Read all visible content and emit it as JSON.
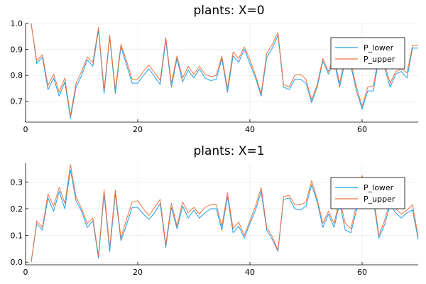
{
  "colors": {
    "lower": "#1f9ee9",
    "upper": "#f0743e",
    "grid": "#e6e6e6",
    "legend_border": "#000000"
  },
  "chart_data": [
    {
      "type": "line",
      "title": "plants: X=0",
      "xlabel": "",
      "ylabel": "",
      "xlim": [
        0,
        70
      ],
      "ylim": [
        0.62,
        1.0
      ],
      "xticks": [
        0,
        20,
        40,
        60
      ],
      "yticks": [
        0.7,
        0.8,
        0.9,
        1.0
      ],
      "ytick_labels": [
        "0.7",
        "0.8",
        "0.9",
        "1.0"
      ],
      "grid": true,
      "legend_position": "top-right",
      "x": [
        1,
        2,
        3,
        4,
        5,
        6,
        7,
        8,
        9,
        10,
        11,
        12,
        13,
        14,
        15,
        16,
        17,
        18,
        19,
        20,
        21,
        22,
        23,
        24,
        25,
        26,
        27,
        28,
        29,
        30,
        31,
        32,
        33,
        34,
        35,
        36,
        37,
        38,
        39,
        40,
        41,
        42,
        43,
        44,
        45,
        46,
        47,
        48,
        49,
        50,
        51,
        52,
        53,
        54,
        55,
        56,
        57,
        58,
        59,
        60,
        61,
        62,
        63,
        64,
        65,
        66,
        67,
        68,
        69,
        70
      ],
      "series": [
        {
          "name": "P_lower",
          "values": [
            1.0,
            0.845,
            0.87,
            0.745,
            0.79,
            0.72,
            0.775,
            0.635,
            0.755,
            0.8,
            0.86,
            0.835,
            0.975,
            0.73,
            0.945,
            0.73,
            0.91,
            0.84,
            0.77,
            0.77,
            0.8,
            0.825,
            0.795,
            0.765,
            0.935,
            0.755,
            0.865,
            0.775,
            0.82,
            0.79,
            0.825,
            0.79,
            0.78,
            0.785,
            0.865,
            0.735,
            0.875,
            0.85,
            0.9,
            0.845,
            0.79,
            0.72,
            0.87,
            0.905,
            0.955,
            0.755,
            0.745,
            0.785,
            0.785,
            0.77,
            0.695,
            0.755,
            0.855,
            0.805,
            0.855,
            0.755,
            0.86,
            0.835,
            0.74,
            0.67,
            0.74,
            0.74,
            0.865,
            0.83,
            0.755,
            0.805,
            0.815,
            0.79,
            0.905,
            0.905
          ]
        },
        {
          "name": "P_upper",
          "values": [
            1.0,
            0.855,
            0.88,
            0.76,
            0.805,
            0.735,
            0.79,
            0.645,
            0.77,
            0.815,
            0.87,
            0.85,
            0.985,
            0.745,
            0.955,
            0.745,
            0.92,
            0.855,
            0.785,
            0.785,
            0.815,
            0.84,
            0.81,
            0.78,
            0.945,
            0.77,
            0.875,
            0.79,
            0.835,
            0.805,
            0.835,
            0.805,
            0.795,
            0.8,
            0.875,
            0.75,
            0.89,
            0.865,
            0.91,
            0.86,
            0.8,
            0.73,
            0.885,
            0.92,
            0.965,
            0.765,
            0.755,
            0.8,
            0.805,
            0.785,
            0.705,
            0.765,
            0.865,
            0.815,
            0.87,
            0.77,
            0.87,
            0.85,
            0.755,
            0.68,
            0.755,
            0.76,
            0.875,
            0.845,
            0.77,
            0.815,
            0.825,
            0.81,
            0.915,
            0.915
          ]
        }
      ]
    },
    {
      "type": "line",
      "title": "plants: X=1",
      "xlabel": "",
      "ylabel": "",
      "xlim": [
        0,
        70
      ],
      "ylim": [
        -0.01,
        0.37
      ],
      "xticks": [
        0,
        20,
        40,
        60
      ],
      "yticks": [
        0.0,
        0.1,
        0.2,
        0.3
      ],
      "ytick_labels": [
        "0.0",
        "0.1",
        "0.2",
        "0.3"
      ],
      "grid": true,
      "legend_position": "top-right",
      "x": [
        1,
        2,
        3,
        4,
        5,
        6,
        7,
        8,
        9,
        10,
        11,
        12,
        13,
        14,
        15,
        16,
        17,
        18,
        19,
        20,
        21,
        22,
        23,
        24,
        25,
        26,
        27,
        28,
        29,
        30,
        31,
        32,
        33,
        34,
        35,
        36,
        37,
        38,
        39,
        40,
        41,
        42,
        43,
        44,
        45,
        46,
        47,
        48,
        49,
        50,
        51,
        52,
        53,
        54,
        55,
        56,
        57,
        58,
        59,
        60,
        61,
        62,
        63,
        64,
        65,
        66,
        67,
        68,
        69,
        70
      ],
      "series": [
        {
          "name": "P_lower",
          "values": [
            0.0,
            0.145,
            0.12,
            0.24,
            0.19,
            0.265,
            0.2,
            0.345,
            0.23,
            0.19,
            0.13,
            0.155,
            0.015,
            0.255,
            0.04,
            0.255,
            0.08,
            0.14,
            0.205,
            0.205,
            0.18,
            0.16,
            0.185,
            0.22,
            0.055,
            0.205,
            0.125,
            0.21,
            0.165,
            0.195,
            0.165,
            0.185,
            0.2,
            0.2,
            0.12,
            0.245,
            0.11,
            0.135,
            0.09,
            0.145,
            0.195,
            0.265,
            0.12,
            0.085,
            0.04,
            0.235,
            0.24,
            0.2,
            0.195,
            0.21,
            0.29,
            0.225,
            0.13,
            0.18,
            0.13,
            0.22,
            0.12,
            0.11,
            0.195,
            0.31,
            0.22,
            0.235,
            0.09,
            0.14,
            0.215,
            0.185,
            0.165,
            0.185,
            0.195,
            0.085
          ]
        },
        {
          "name": "P_upper",
          "values": [
            0.0,
            0.155,
            0.13,
            0.255,
            0.21,
            0.28,
            0.22,
            0.365,
            0.245,
            0.2,
            0.145,
            0.165,
            0.025,
            0.27,
            0.055,
            0.27,
            0.09,
            0.16,
            0.225,
            0.23,
            0.2,
            0.175,
            0.205,
            0.235,
            0.065,
            0.22,
            0.135,
            0.225,
            0.185,
            0.205,
            0.18,
            0.205,
            0.215,
            0.215,
            0.135,
            0.26,
            0.125,
            0.15,
            0.1,
            0.155,
            0.21,
            0.28,
            0.13,
            0.095,
            0.045,
            0.245,
            0.25,
            0.215,
            0.215,
            0.225,
            0.305,
            0.235,
            0.145,
            0.19,
            0.145,
            0.235,
            0.145,
            0.125,
            0.215,
            0.325,
            0.235,
            0.255,
            0.1,
            0.155,
            0.23,
            0.2,
            0.18,
            0.195,
            0.215,
            0.095
          ]
        }
      ]
    }
  ]
}
